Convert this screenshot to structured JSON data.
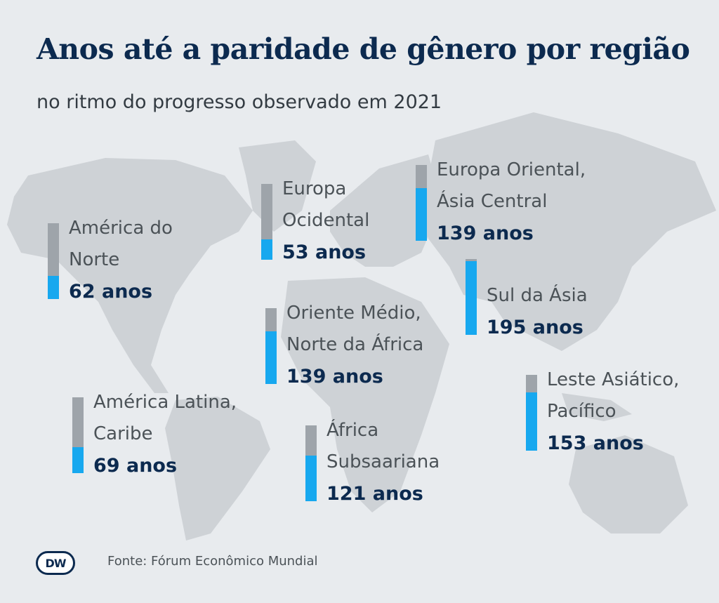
{
  "title": "Anos até a paridade de gênero por região",
  "subtitle": "no ritmo do progresso observado em 2021",
  "source": "Fonte: Fórum Econômico Mundial",
  "logo": "DW",
  "colors": {
    "background": "#e8ebee",
    "land": "#ced2d6",
    "bar_grey": "#9ea4aa",
    "bar_blue": "#17a8ef",
    "title": "#0c2a4f"
  },
  "chart_data": {
    "type": "bar",
    "categories": [
      "América do Norte",
      "Europa Ocidental",
      "Europa Oriental, Ásia Central",
      "Sul da Ásia",
      "Oriente Médio, Norte da África",
      "Leste Asiático, Pacífico",
      "América Latina, Caribe",
      "África Subsaariana"
    ],
    "values": [
      62,
      53,
      139,
      195,
      139,
      153,
      69,
      121
    ],
    "value_labels": [
      "62 anos",
      "53 anos",
      "139 anos",
      "195 anos",
      "139 anos",
      "153 anos",
      "69 anos",
      "121 anos"
    ],
    "label_lines": [
      [
        "América do",
        "Norte"
      ],
      [
        "Europa",
        "Ocidental"
      ],
      [
        "Europa Oriental,",
        "Ásia Central"
      ],
      [
        "Sul da Ásia"
      ],
      [
        "Oriente Médio,",
        "Norte da África"
      ],
      [
        "Leste Asiático,",
        "Pacífico"
      ],
      [
        "América Latina,",
        "Caribe"
      ],
      [
        "África",
        "Subsaariana"
      ]
    ],
    "scale_max": 200,
    "title": "Anos até a paridade de gênero por região",
    "subtitle": "no ritmo do progresso observado em 2021",
    "xlabel": "",
    "ylabel": ""
  }
}
